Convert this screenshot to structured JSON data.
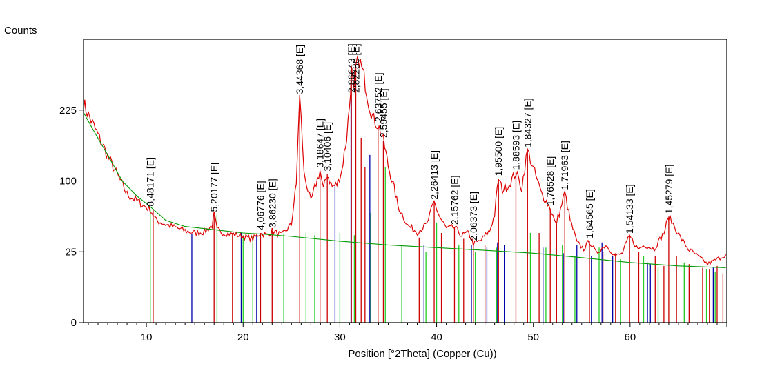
{
  "chart_data": {
    "type": "line",
    "ylabel": "Counts",
    "xlabel": "Position [°2Theta] (Copper (Cu))",
    "xlim": [
      3.5,
      70
    ],
    "y_scale": "sqrt",
    "ylim": [
      0,
      400
    ],
    "x_ticks": [
      10,
      20,
      30,
      40,
      50,
      60
    ],
    "y_ticks": [
      0,
      25,
      100,
      225
    ],
    "grid": false,
    "colors": {
      "measured": "#dd0000",
      "background": "#009900",
      "ref_red": "#cc0000",
      "ref_green": "#22cc22",
      "ref_blue": "#0000aa",
      "frame": "#000000"
    },
    "peak_labels": [
      {
        "text": "8,48171 [E]",
        "x": 10.4,
        "y": 64
      },
      {
        "text": "5,20177 [E]",
        "x": 17.0,
        "y": 58
      },
      {
        "text": "4,06776 [E]",
        "x": 21.8,
        "y": 40
      },
      {
        "text": "3,86230 [E]",
        "x": 23.0,
        "y": 42
      },
      {
        "text": "3,44368 [E]",
        "x": 25.85,
        "y": 254
      },
      {
        "text": "3,18647 [E]",
        "x": 27.95,
        "y": 115
      },
      {
        "text": "3,10406 [E]",
        "x": 28.7,
        "y": 110
      },
      {
        "text": "2,86643 [E]",
        "x": 31.2,
        "y": 316
      },
      {
        "text": "2,82280 [E]",
        "x": 31.65,
        "y": 322
      },
      {
        "text": "2,63752 [E]",
        "x": 33.95,
        "y": 195
      },
      {
        "text": "2,59455 [E]",
        "x": 34.5,
        "y": 165
      },
      {
        "text": "2,26413 [E]",
        "x": 39.75,
        "y": 72
      },
      {
        "text": "2,15762 [E]",
        "x": 41.85,
        "y": 45
      },
      {
        "text": "2,06373 [E]",
        "x": 43.8,
        "y": 31
      },
      {
        "text": "1,95500 [E]",
        "x": 46.4,
        "y": 103
      },
      {
        "text": "1,88593 [E]",
        "x": 48.2,
        "y": 112
      },
      {
        "text": "1,84327 [E]",
        "x": 49.4,
        "y": 148
      },
      {
        "text": "1,76528 [E]",
        "x": 51.75,
        "y": 65
      },
      {
        "text": "1,71963 [E]",
        "x": 53.25,
        "y": 84
      },
      {
        "text": "1,64565 [E]",
        "x": 55.8,
        "y": 33
      },
      {
        "text": "1,54133 [E]",
        "x": 59.95,
        "y": 37
      },
      {
        "text": "1,45279 [E]",
        "x": 64.0,
        "y": 56
      }
    ],
    "series": [
      {
        "name": "",
        "color": "#dd0000",
        "x": [
          3.5,
          4.0,
          5.0,
          6.0,
          7.0,
          8.0,
          9.0,
          10.0,
          10.4,
          11.0,
          12.0,
          13.0,
          14.0,
          15.0,
          16.0,
          16.8,
          17.0,
          17.3,
          18.0,
          19.0,
          20.0,
          21.0,
          21.8,
          22.5,
          23.0,
          24.0,
          25.0,
          25.5,
          25.85,
          26.3,
          27.0,
          27.95,
          28.3,
          28.7,
          29.2,
          29.7,
          30.2,
          30.7,
          31.0,
          31.2,
          31.45,
          31.65,
          32.0,
          32.5,
          33.0,
          33.5,
          33.95,
          34.5,
          35.0,
          35.5,
          36.0,
          37.0,
          38.0,
          39.0,
          39.75,
          40.3,
          41.0,
          41.85,
          42.6,
          43.3,
          43.8,
          44.5,
          45.5,
          46.0,
          46.4,
          46.8,
          47.5,
          48.2,
          48.8,
          49.4,
          50.0,
          50.8,
          51.75,
          52.3,
          52.8,
          53.25,
          53.8,
          54.5,
          55.2,
          55.8,
          56.5,
          57.5,
          58.5,
          59.2,
          59.95,
          60.8,
          61.5,
          62.5,
          63.5,
          64.0,
          64.6,
          65.2,
          66.0,
          67.0,
          68.0,
          69.0,
          69.9
        ],
        "y": [
          240,
          215,
          175,
          138,
          108,
          82,
          74,
          66,
          64,
          52,
          48,
          45,
          42,
          40,
          41,
          47,
          58,
          43,
          40,
          39,
          37,
          35,
          40,
          38,
          42,
          38,
          48,
          95,
          254,
          110,
          72,
          115,
          88,
          110,
          92,
          95,
          115,
          170,
          235,
          316,
          260,
          322,
          345,
          300,
          240,
          205,
          195,
          165,
          122,
          96,
          68,
          47,
          41,
          48,
          72,
          56,
          44,
          45,
          38,
          40,
          31,
          33,
          42,
          58,
          103,
          88,
          95,
          112,
          90,
          148,
          118,
          84,
          65,
          48,
          63,
          84,
          52,
          32,
          27,
          33,
          24,
          30,
          22,
          24,
          37,
          27,
          30,
          27,
          40,
          56,
          46,
          36,
          27,
          22,
          17,
          20,
          23
        ]
      },
      {
        "name": "",
        "color": "#009900",
        "x": [
          3.5,
          4.5,
          6.0,
          7.5,
          9.0,
          10.5,
          12.0,
          14.0,
          16.0,
          18.0,
          20.0,
          22.0,
          25.0,
          30.0,
          35.0,
          40.0,
          45.0,
          50.0,
          55.0,
          60.0,
          65.0,
          69.9
        ],
        "y": [
          220,
          185,
          140,
          100,
          80,
          66,
          52,
          46,
          44,
          42,
          40,
          39,
          37,
          33,
          30,
          28,
          26,
          24,
          21,
          18,
          16,
          15
        ]
      }
    ],
    "reference_lines": [
      {
        "color": "#cc0000",
        "x": [
          10.7,
          17.0,
          18.9,
          21.8,
          23.0,
          25.85,
          27.95,
          28.7,
          31.2,
          31.65,
          32.2,
          32.6,
          33.95,
          34.5,
          38.2,
          39.75,
          40.5,
          41.85,
          42.8,
          43.8,
          45.0,
          46.4,
          48.2,
          49.4,
          50.6,
          51.75,
          52.4,
          53.25,
          55.8,
          57.2,
          58.5,
          59.95,
          60.9,
          62.6,
          63.5,
          64.0,
          64.8,
          66.1,
          67.5,
          68.2,
          69.0,
          69.6
        ],
        "y": [
          64,
          58,
          40,
          40,
          42,
          254,
          115,
          110,
          316,
          322,
          170,
          120,
          195,
          165,
          36,
          72,
          40,
          45,
          35,
          31,
          30,
          103,
          112,
          148,
          40,
          65,
          49,
          84,
          33,
          25,
          24,
          37,
          25,
          22,
          16,
          56,
          22,
          17,
          15,
          14,
          16,
          12
        ]
      },
      {
        "color": "#22cc22",
        "x": [
          10.4,
          17.3,
          20.0,
          21.0,
          24.2,
          26.5,
          27.4,
          30.0,
          31.5,
          33.2,
          34.7,
          36.4,
          38.9,
          40.0,
          42.3,
          44.0,
          46.2,
          49.7,
          51.3,
          53.0,
          54.3,
          56.8,
          59.0,
          61.4,
          62.9,
          65.6,
          67.9,
          68.8
        ],
        "y": [
          64,
          58,
          38,
          37,
          39,
          40,
          38,
          40,
          38,
          60,
          120,
          30,
          25,
          50,
          30,
          25,
          28,
          40,
          28,
          30,
          22,
          28,
          20,
          22,
          15,
          18,
          14,
          13
        ]
      },
      {
        "color": "#0000aa",
        "x": [
          14.7,
          19.8,
          21.4,
          29.5,
          31.15,
          33.1,
          38.7,
          43.6,
          45.2,
          46.3,
          47.0,
          51.0,
          53.1,
          54.5,
          56.0,
          57.1,
          58.2,
          61.8,
          62.1,
          68.6
        ],
        "y": [
          39,
          40,
          38,
          95,
          250,
          140,
          30,
          30,
          28,
          32,
          30,
          28,
          24,
          30,
          22,
          32,
          22,
          18,
          17,
          15
        ]
      }
    ]
  }
}
